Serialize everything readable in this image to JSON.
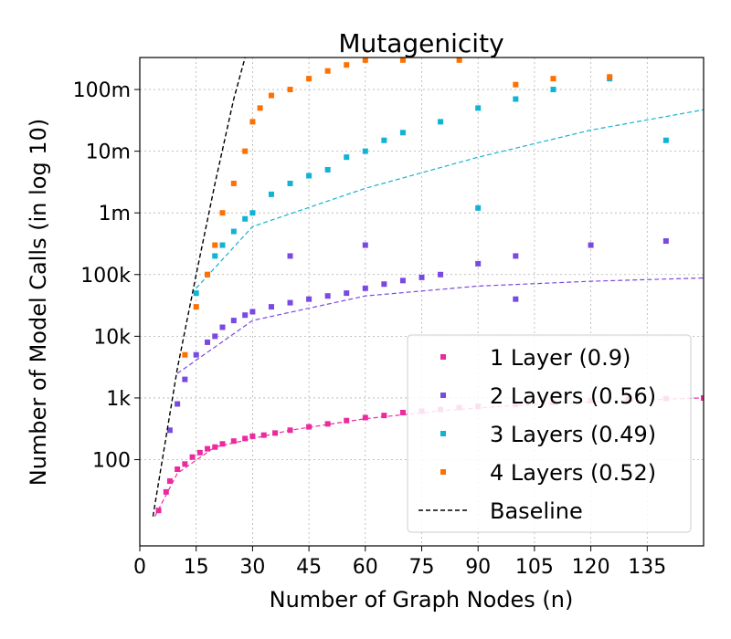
{
  "chart_data": {
    "type": "scatter",
    "title": "Mutagenicity",
    "xlabel": "Number of Graph Nodes (n)",
    "ylabel": "Number of Model Calls (in log 10)",
    "y_scale": "log10",
    "xlim": [
      0,
      150
    ],
    "ylim": [
      4,
      330000000
    ],
    "grid": true,
    "legend_position": "lower-right",
    "x_ticks": [
      0,
      15,
      30,
      45,
      60,
      75,
      90,
      105,
      120,
      135
    ],
    "x_tick_labels": [
      "0",
      "15",
      "30",
      "45",
      "60",
      "75",
      "90",
      "105",
      "120",
      "135"
    ],
    "y_ticks": [
      100,
      1000,
      10000,
      100000,
      1000000,
      10000000,
      100000000
    ],
    "y_tick_labels": [
      "100",
      "1k",
      "10k",
      "100k",
      "1m",
      "10m",
      "100m"
    ],
    "series": [
      {
        "name": "1 Layer (0.9)",
        "color": "#ec2aa0",
        "marker": "square",
        "points": [
          [
            5,
            15
          ],
          [
            7,
            30
          ],
          [
            8,
            45
          ],
          [
            10,
            70
          ],
          [
            12,
            85
          ],
          [
            14,
            110
          ],
          [
            16,
            130
          ],
          [
            18,
            150
          ],
          [
            20,
            160
          ],
          [
            22,
            180
          ],
          [
            25,
            200
          ],
          [
            28,
            220
          ],
          [
            30,
            240
          ],
          [
            33,
            250
          ],
          [
            36,
            270
          ],
          [
            40,
            300
          ],
          [
            45,
            340
          ],
          [
            50,
            380
          ],
          [
            55,
            430
          ],
          [
            60,
            480
          ],
          [
            65,
            520
          ],
          [
            70,
            580
          ],
          [
            75,
            610
          ],
          [
            80,
            650
          ],
          [
            85,
            700
          ],
          [
            90,
            730
          ],
          [
            100,
            780
          ],
          [
            110,
            850
          ],
          [
            120,
            900
          ],
          [
            130,
            950
          ],
          [
            140,
            980
          ],
          [
            150,
            1000
          ]
        ],
        "trend": [
          [
            4,
            12
          ],
          [
            10,
            60
          ],
          [
            20,
            160
          ],
          [
            40,
            300
          ],
          [
            60,
            460
          ],
          [
            80,
            620
          ],
          [
            100,
            760
          ],
          [
            120,
            860
          ],
          [
            150,
            1000
          ]
        ]
      },
      {
        "name": "2 Layers (0.56)",
        "color": "#7a49e0",
        "marker": "square",
        "points": [
          [
            8,
            300
          ],
          [
            10,
            800
          ],
          [
            12,
            2000
          ],
          [
            15,
            5000
          ],
          [
            18,
            8000
          ],
          [
            20,
            10000
          ],
          [
            22,
            14000
          ],
          [
            25,
            18000
          ],
          [
            28,
            22000
          ],
          [
            30,
            25000
          ],
          [
            35,
            30000
          ],
          [
            40,
            35000
          ],
          [
            45,
            40000
          ],
          [
            50,
            45000
          ],
          [
            55,
            50000
          ],
          [
            60,
            60000
          ],
          [
            65,
            70000
          ],
          [
            70,
            80000
          ],
          [
            75,
            90000
          ],
          [
            80,
            100000
          ],
          [
            90,
            150000
          ],
          [
            100,
            200000
          ],
          [
            120,
            300000
          ],
          [
            140,
            350000
          ],
          [
            40,
            200000
          ],
          [
            60,
            300000
          ],
          [
            100,
            40000
          ]
        ],
        "trend": [
          [
            10,
            2500
          ],
          [
            30,
            18000
          ],
          [
            60,
            45000
          ],
          [
            90,
            65000
          ],
          [
            120,
            78000
          ],
          [
            150,
            88000
          ]
        ]
      },
      {
        "name": "3 Layers (0.49)",
        "color": "#11b3d4",
        "marker": "square",
        "points": [
          [
            15,
            50000
          ],
          [
            18,
            100000
          ],
          [
            20,
            200000
          ],
          [
            22,
            300000
          ],
          [
            25,
            500000
          ],
          [
            28,
            800000
          ],
          [
            30,
            1000000
          ],
          [
            35,
            2000000
          ],
          [
            40,
            3000000
          ],
          [
            45,
            4000000
          ],
          [
            50,
            5000000
          ],
          [
            55,
            8000000
          ],
          [
            60,
            10000000
          ],
          [
            65,
            15000000
          ],
          [
            70,
            20000000
          ],
          [
            80,
            30000000
          ],
          [
            90,
            50000000
          ],
          [
            100,
            70000000
          ],
          [
            110,
            100000000
          ],
          [
            125,
            150000000
          ],
          [
            140,
            15000000
          ],
          [
            90,
            1200000
          ]
        ],
        "trend": [
          [
            15,
            60000
          ],
          [
            30,
            600000
          ],
          [
            60,
            2500000
          ],
          [
            90,
            8000000
          ],
          [
            120,
            22000000
          ],
          [
            150,
            47000000
          ]
        ]
      },
      {
        "name": "4 Layers (0.52)",
        "color": "#ff7000",
        "marker": "square",
        "points": [
          [
            12,
            5000
          ],
          [
            15,
            30000
          ],
          [
            18,
            100000
          ],
          [
            20,
            300000
          ],
          [
            22,
            1000000
          ],
          [
            25,
            3000000
          ],
          [
            28,
            10000000
          ],
          [
            30,
            30000000
          ],
          [
            32,
            50000000
          ],
          [
            35,
            80000000
          ],
          [
            40,
            100000000
          ],
          [
            45,
            150000000
          ],
          [
            50,
            200000000
          ],
          [
            55,
            250000000
          ],
          [
            60,
            300000000
          ],
          [
            70,
            300000000
          ],
          [
            85,
            300000000
          ],
          [
            100,
            120000000
          ],
          [
            110,
            150000000
          ],
          [
            125,
            160000000
          ]
        ]
      },
      {
        "name": "Baseline",
        "color": "#000000",
        "style": "dashed",
        "points": [
          [
            3.5,
            12
          ],
          [
            10,
            3000
          ],
          [
            15,
            100000
          ],
          [
            20,
            3000000
          ],
          [
            25,
            70000000
          ],
          [
            28,
            330000000
          ]
        ]
      }
    ]
  }
}
